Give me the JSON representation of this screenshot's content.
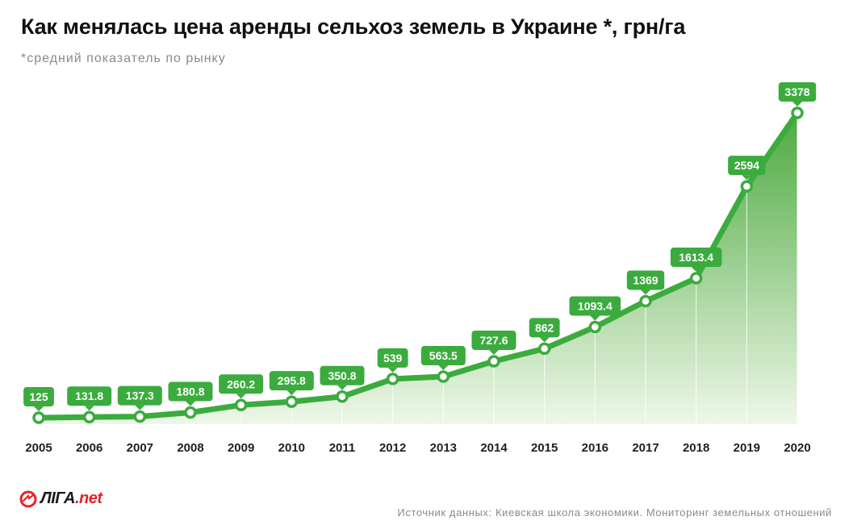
{
  "title": "Как менялась цена аренды сельхоз земель в Украине *, грн/га",
  "subtitle": "*средний показатель по рынку",
  "source": "Источник данных: Киевская школа экономики. Мониторинг земельных отношений",
  "logo": {
    "main": "ЛІГА",
    "suffix": ".net"
  },
  "colors": {
    "line": "#3bab3e",
    "label_bg": "#3bab3e",
    "fill_top": "#4daa40",
    "fill_bottom": "#eef7e8",
    "marker_stroke": "#3bab3e",
    "brand_red": "#e3232c"
  },
  "chart_data": {
    "type": "area",
    "title": "Как менялась цена аренды сельхоз земель в Украине *, грн/га",
    "xlabel": "",
    "ylabel": "",
    "x": [
      "2005",
      "2006",
      "2007",
      "2008",
      "2009",
      "2010",
      "2011",
      "2012",
      "2013",
      "2014",
      "2015",
      "2016",
      "2017",
      "2018",
      "2019",
      "2020"
    ],
    "series": [
      {
        "values": [
          125,
          131.8,
          137.3,
          180.8,
          260.2,
          295.8,
          350.8,
          539,
          563.5,
          727.6,
          862,
          1093.4,
          1369,
          1613.4,
          2594,
          3378
        ],
        "labels": [
          "125",
          "131.8",
          "137.3",
          "180.8",
          "260.2",
          "295.8",
          "350.8",
          "539",
          "563.5",
          "727.6",
          "862",
          "1093.4",
          "1369",
          "1613.4",
          "2594",
          "3378"
        ]
      }
    ],
    "grid": "vertical",
    "legend": "none"
  }
}
